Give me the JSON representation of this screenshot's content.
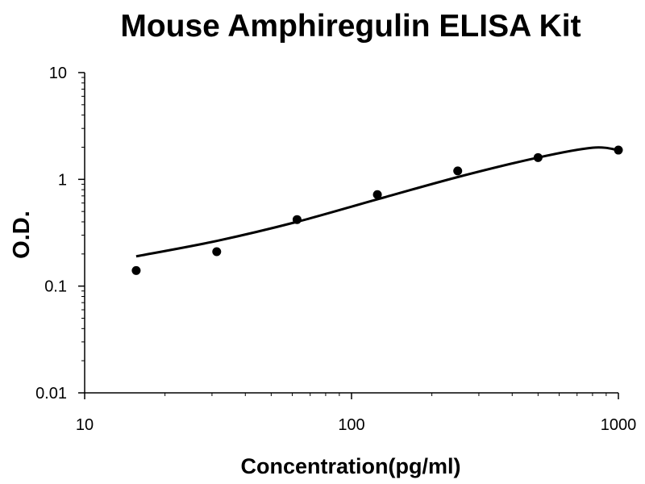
{
  "chart_data": {
    "type": "scatter",
    "title": "Mouse Amphiregulin ELISA Kit",
    "xlabel": "Concentration(pg/ml)",
    "ylabel": "O.D.",
    "x_scale": "log",
    "y_scale": "log",
    "xlim": [
      10,
      1000
    ],
    "ylim": [
      0.01,
      10
    ],
    "grid": false,
    "x_ticks": [
      "10",
      "100",
      "1000"
    ],
    "y_ticks": [
      "0.01",
      "0.1",
      "1",
      "10"
    ],
    "series": [
      {
        "points": [
          {
            "x": 15.6,
            "y": 0.14
          },
          {
            "x": 31.25,
            "y": 0.21
          },
          {
            "x": 62.5,
            "y": 0.42
          },
          {
            "x": 125,
            "y": 0.72
          },
          {
            "x": 250,
            "y": 1.2
          },
          {
            "x": 500,
            "y": 1.6
          },
          {
            "x": 1000,
            "y": 1.88
          }
        ]
      }
    ],
    "fit_curve": [
      {
        "x": 15.6,
        "y": 0.19
      },
      {
        "x": 31.25,
        "y": 0.265
      },
      {
        "x": 62.5,
        "y": 0.4
      },
      {
        "x": 125,
        "y": 0.65
      },
      {
        "x": 250,
        "y": 1.05
      },
      {
        "x": 500,
        "y": 1.6
      },
      {
        "x": 800,
        "y": 1.98
      },
      {
        "x": 1000,
        "y": 1.88
      }
    ],
    "colors": {
      "marker": "#000000",
      "curve": "#000000",
      "axis": "#000000"
    }
  }
}
